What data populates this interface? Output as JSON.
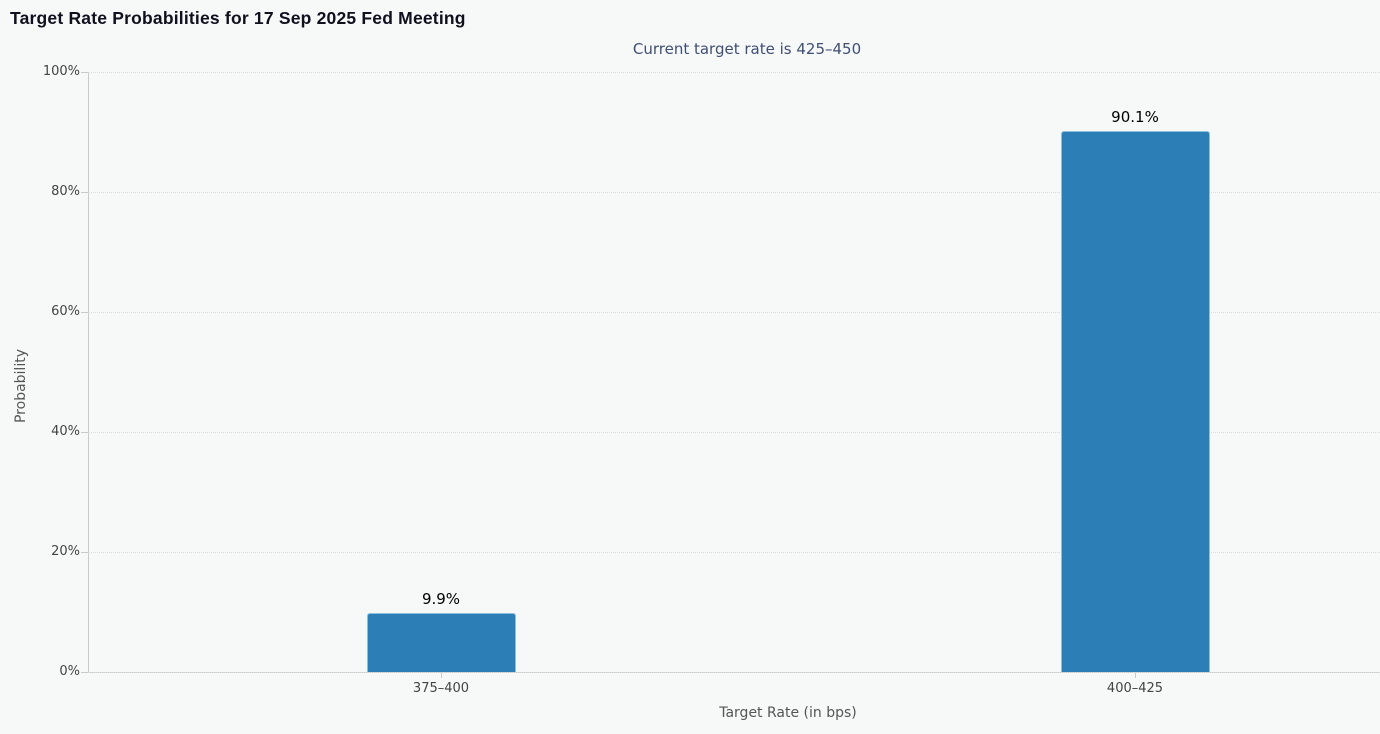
{
  "title": "Target Rate Probabilities for 17 Sep 2025 Fed Meeting",
  "subtitle": "Current target rate is 425–450",
  "colors": {
    "background": "#f7f8f8",
    "bar_fill": "#2c7fb6",
    "bar_border": "#8fbfdb",
    "title_text": "#10101e",
    "subtitle_text": "#3f4f73",
    "axis_label": "#444444",
    "axis_title": "#555555",
    "gridline": "#dcdcdc",
    "axis_line": "#c9c9c9",
    "data_label": "#000000"
  },
  "chart_data": {
    "type": "bar",
    "title": "Target Rate Probabilities for 17 Sep 2025 Fed Meeting",
    "subtitle": "Current target rate is 425–450",
    "categories": [
      "375–400",
      "400–425"
    ],
    "values": [
      9.9,
      90.1
    ],
    "data_labels": [
      "9.9%",
      "90.1%"
    ],
    "xlabel": "Target Rate (in bps)",
    "ylabel": "Probability",
    "ylim": [
      0,
      100
    ],
    "yticks": [
      0,
      20,
      40,
      60,
      80,
      100
    ],
    "ytick_labels": [
      "0%",
      "20%",
      "40%",
      "60%",
      "80%",
      "100%"
    ],
    "grid": "horizontal-dotted",
    "legend": "none"
  }
}
